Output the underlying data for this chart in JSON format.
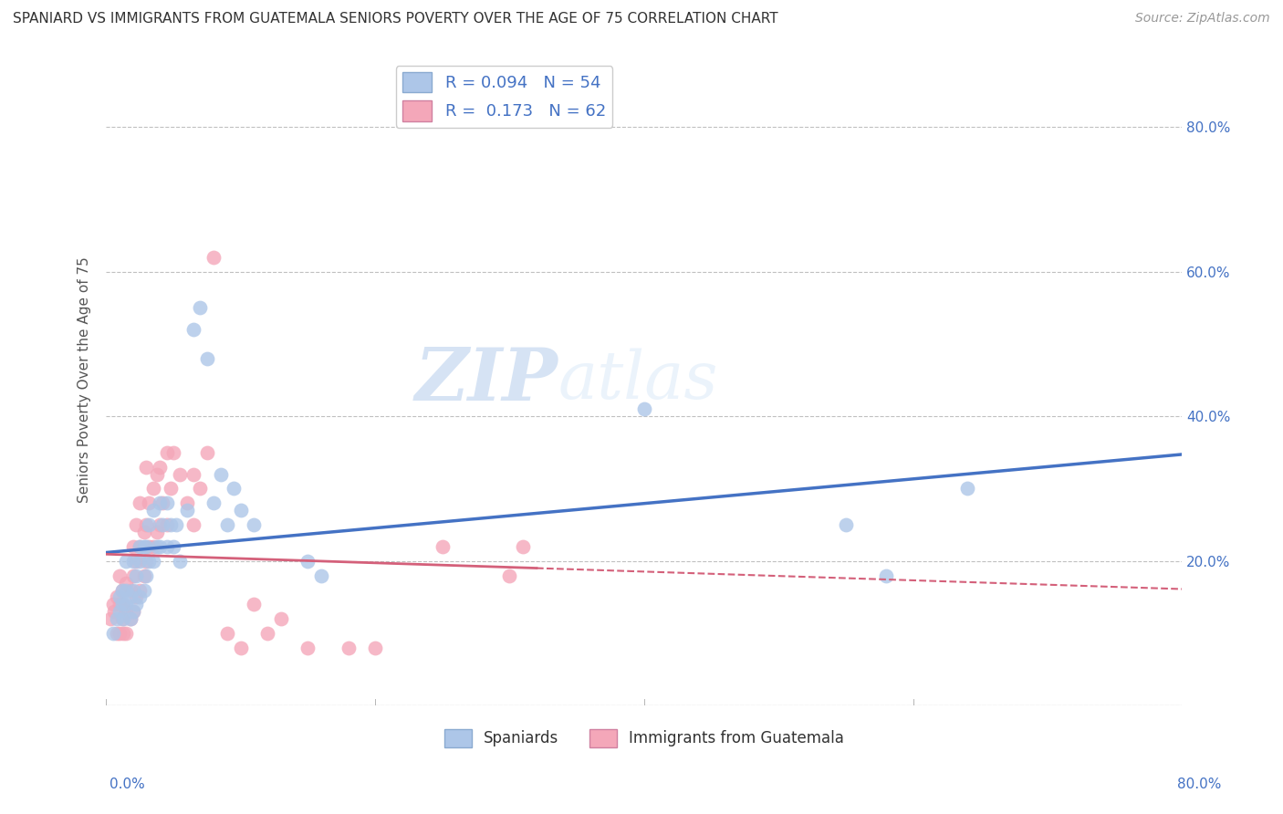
{
  "title": "SPANIARD VS IMMIGRANTS FROM GUATEMALA SENIORS POVERTY OVER THE AGE OF 75 CORRELATION CHART",
  "source": "Source: ZipAtlas.com",
  "ylabel": "Seniors Poverty Over the Age of 75",
  "xlim": [
    0.0,
    0.8
  ],
  "ylim": [
    0.0,
    0.9
  ],
  "ytick_vals": [
    0.0,
    0.2,
    0.4,
    0.6,
    0.8
  ],
  "xtick_vals": [
    0.0,
    0.2,
    0.4,
    0.6,
    0.8
  ],
  "spaniards_R": "0.094",
  "spaniards_N": "54",
  "guatemala_R": "0.173",
  "guatemala_N": "62",
  "spaniard_color": "#adc6e8",
  "spaniard_line_color": "#4472c4",
  "guatemala_color": "#f4a7b9",
  "guatemala_line_color": "#d4607a",
  "legend_text_color": "#4472c4",
  "watermark_zip": "ZIP",
  "watermark_atlas": "atlas",
  "spaniards_x": [
    0.005,
    0.008,
    0.01,
    0.01,
    0.012,
    0.012,
    0.013,
    0.015,
    0.015,
    0.015,
    0.018,
    0.018,
    0.02,
    0.02,
    0.02,
    0.022,
    0.022,
    0.025,
    0.025,
    0.025,
    0.028,
    0.028,
    0.03,
    0.03,
    0.032,
    0.032,
    0.035,
    0.035,
    0.038,
    0.04,
    0.04,
    0.042,
    0.045,
    0.045,
    0.048,
    0.05,
    0.052,
    0.055,
    0.06,
    0.065,
    0.07,
    0.075,
    0.08,
    0.085,
    0.09,
    0.095,
    0.1,
    0.11,
    0.15,
    0.16,
    0.4,
    0.55,
    0.58,
    0.64
  ],
  "spaniards_y": [
    0.1,
    0.12,
    0.13,
    0.15,
    0.14,
    0.16,
    0.12,
    0.14,
    0.16,
    0.2,
    0.12,
    0.15,
    0.13,
    0.16,
    0.2,
    0.14,
    0.18,
    0.15,
    0.2,
    0.22,
    0.16,
    0.22,
    0.18,
    0.22,
    0.2,
    0.25,
    0.2,
    0.27,
    0.22,
    0.22,
    0.28,
    0.25,
    0.22,
    0.28,
    0.25,
    0.22,
    0.25,
    0.2,
    0.27,
    0.52,
    0.55,
    0.48,
    0.28,
    0.32,
    0.25,
    0.3,
    0.27,
    0.25,
    0.2,
    0.18,
    0.41,
    0.25,
    0.18,
    0.3
  ],
  "guatemala_x": [
    0.003,
    0.005,
    0.006,
    0.008,
    0.008,
    0.01,
    0.01,
    0.01,
    0.012,
    0.012,
    0.013,
    0.013,
    0.015,
    0.015,
    0.015,
    0.018,
    0.018,
    0.02,
    0.02,
    0.02,
    0.022,
    0.022,
    0.022,
    0.025,
    0.025,
    0.025,
    0.028,
    0.028,
    0.03,
    0.03,
    0.03,
    0.032,
    0.032,
    0.035,
    0.035,
    0.038,
    0.038,
    0.04,
    0.04,
    0.042,
    0.045,
    0.045,
    0.048,
    0.05,
    0.055,
    0.06,
    0.065,
    0.065,
    0.07,
    0.075,
    0.08,
    0.09,
    0.1,
    0.11,
    0.12,
    0.13,
    0.15,
    0.18,
    0.2,
    0.25,
    0.3,
    0.31
  ],
  "guatemala_y": [
    0.12,
    0.14,
    0.13,
    0.1,
    0.15,
    0.1,
    0.14,
    0.18,
    0.12,
    0.16,
    0.1,
    0.14,
    0.1,
    0.13,
    0.17,
    0.12,
    0.16,
    0.13,
    0.18,
    0.22,
    0.15,
    0.2,
    0.25,
    0.16,
    0.22,
    0.28,
    0.18,
    0.24,
    0.2,
    0.25,
    0.33,
    0.22,
    0.28,
    0.22,
    0.3,
    0.24,
    0.32,
    0.25,
    0.33,
    0.28,
    0.25,
    0.35,
    0.3,
    0.35,
    0.32,
    0.28,
    0.25,
    0.32,
    0.3,
    0.35,
    0.62,
    0.1,
    0.08,
    0.14,
    0.1,
    0.12,
    0.08,
    0.08,
    0.08,
    0.22,
    0.18,
    0.22
  ]
}
